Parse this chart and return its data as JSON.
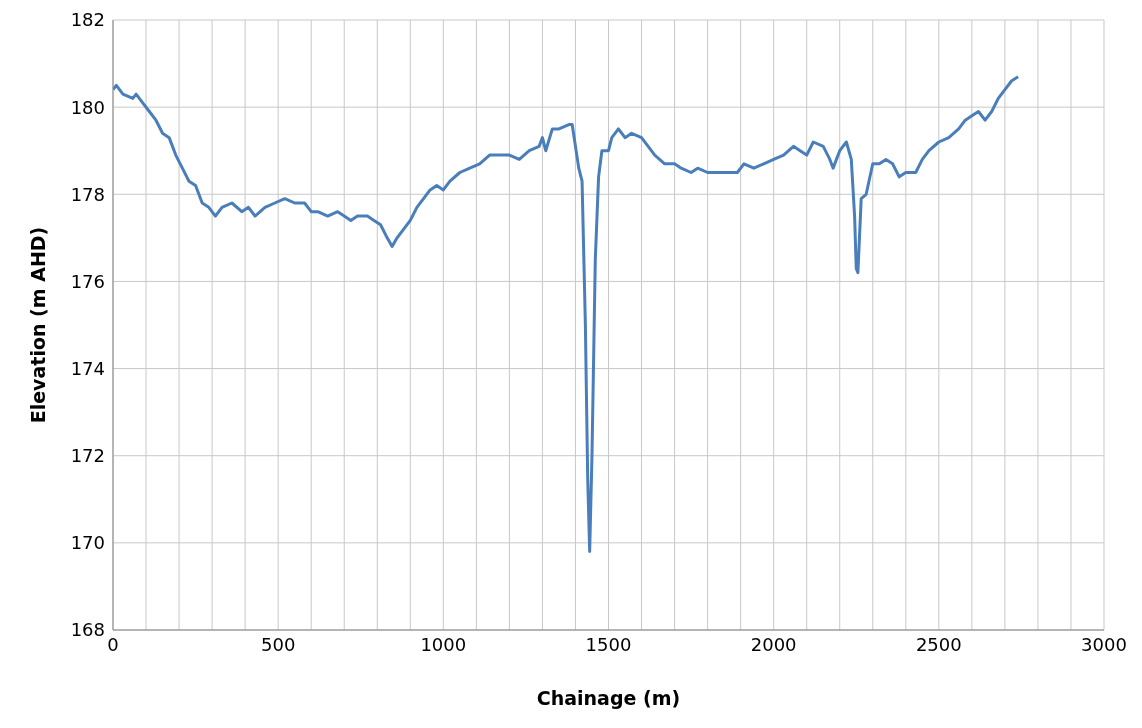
{
  "chart_data": {
    "type": "line",
    "xlabel": "Chainage (m)",
    "ylabel": "Elevation (m AHD)",
    "xlim": [
      0,
      3000
    ],
    "ylim": [
      168,
      182
    ],
    "xticks": [
      0,
      {
        "value": 100,
        "label": null
      },
      {
        "value": 200,
        "label": null
      },
      {
        "value": 300,
        "label": null
      },
      {
        "value": 400,
        "label": null
      },
      500,
      {
        "value": 600,
        "label": null
      },
      {
        "value": 700,
        "label": null
      },
      {
        "value": 800,
        "label": null
      },
      {
        "value": 900,
        "label": null
      },
      1000,
      {
        "value": 1100,
        "label": null
      },
      {
        "value": 1200,
        "label": null
      },
      {
        "value": 1300,
        "label": null
      },
      {
        "value": 1400,
        "label": null
      },
      1500,
      {
        "value": 1600,
        "label": null
      },
      {
        "value": 1700,
        "label": null
      },
      {
        "value": 1800,
        "label": null
      },
      {
        "value": 1900,
        "label": null
      },
      2000,
      {
        "value": 2100,
        "label": null
      },
      {
        "value": 2200,
        "label": null
      },
      {
        "value": 2300,
        "label": null
      },
      {
        "value": 2400,
        "label": null
      },
      2500,
      {
        "value": 2600,
        "label": null
      },
      {
        "value": 2700,
        "label": null
      },
      {
        "value": 2800,
        "label": null
      },
      {
        "value": 2900,
        "label": null
      },
      3000
    ],
    "yticks": [
      168,
      170,
      172,
      174,
      176,
      178,
      180,
      182
    ],
    "grid": true,
    "legend": false,
    "marker": "none",
    "line_style": "solid",
    "series": [
      {
        "color": "#4a7ebb",
        "x": [
          0,
          10,
          30,
          60,
          70,
          90,
          110,
          130,
          150,
          170,
          190,
          210,
          230,
          250,
          270,
          290,
          310,
          330,
          360,
          390,
          410,
          430,
          460,
          490,
          520,
          550,
          580,
          600,
          620,
          650,
          680,
          700,
          720,
          740,
          770,
          790,
          810,
          830,
          845,
          860,
          880,
          900,
          920,
          940,
          960,
          980,
          1000,
          1020,
          1050,
          1080,
          1110,
          1140,
          1180,
          1200,
          1230,
          1260,
          1290,
          1300,
          1310,
          1330,
          1350,
          1380,
          1390,
          1410,
          1420,
          1430,
          1437,
          1443,
          1450,
          1460,
          1470,
          1480,
          1500,
          1510,
          1530,
          1550,
          1570,
          1600,
          1620,
          1640,
          1670,
          1700,
          1720,
          1750,
          1770,
          1800,
          1830,
          1860,
          1890,
          1910,
          1940,
          1970,
          2000,
          2030,
          2060,
          2080,
          2100,
          2120,
          2150,
          2170,
          2180,
          2200,
          2220,
          2235,
          2245,
          2250,
          2255,
          2265,
          2280,
          2300,
          2320,
          2340,
          2360,
          2380,
          2400,
          2430,
          2450,
          2470,
          2500,
          2530,
          2560,
          2580,
          2600,
          2620,
          2640,
          2660,
          2680,
          2700,
          2720,
          2740
        ],
        "values": [
          180.4,
          180.5,
          180.3,
          180.2,
          180.3,
          180.1,
          179.9,
          179.7,
          179.4,
          179.3,
          178.9,
          178.6,
          178.3,
          178.2,
          177.8,
          177.7,
          177.5,
          177.7,
          177.8,
          177.6,
          177.7,
          177.5,
          177.7,
          177.8,
          177.9,
          177.8,
          177.8,
          177.6,
          177.6,
          177.5,
          177.6,
          177.5,
          177.4,
          177.5,
          177.5,
          177.4,
          177.3,
          177.0,
          176.8,
          177.0,
          177.2,
          177.4,
          177.7,
          177.9,
          178.1,
          178.2,
          178.1,
          178.3,
          178.5,
          178.6,
          178.7,
          178.9,
          178.9,
          178.9,
          178.8,
          179.0,
          179.1,
          179.3,
          179.0,
          179.5,
          179.5,
          179.6,
          179.6,
          178.6,
          178.3,
          175.0,
          171.5,
          169.8,
          172.0,
          176.5,
          178.4,
          179.0,
          179.0,
          179.3,
          179.5,
          179.3,
          179.4,
          179.3,
          179.1,
          178.9,
          178.7,
          178.7,
          178.6,
          178.5,
          178.6,
          178.5,
          178.5,
          178.5,
          178.5,
          178.7,
          178.6,
          178.7,
          178.8,
          178.9,
          179.1,
          179.0,
          178.9,
          179.2,
          179.1,
          178.8,
          178.6,
          179.0,
          179.2,
          178.8,
          177.5,
          176.3,
          176.2,
          177.9,
          178.0,
          178.7,
          178.7,
          178.8,
          178.7,
          178.4,
          178.5,
          178.5,
          178.8,
          179.0,
          179.2,
          179.3,
          179.5,
          179.7,
          179.8,
          179.9,
          179.7,
          179.9,
          180.2,
          180.4,
          180.6,
          180.7
        ]
      }
    ]
  }
}
